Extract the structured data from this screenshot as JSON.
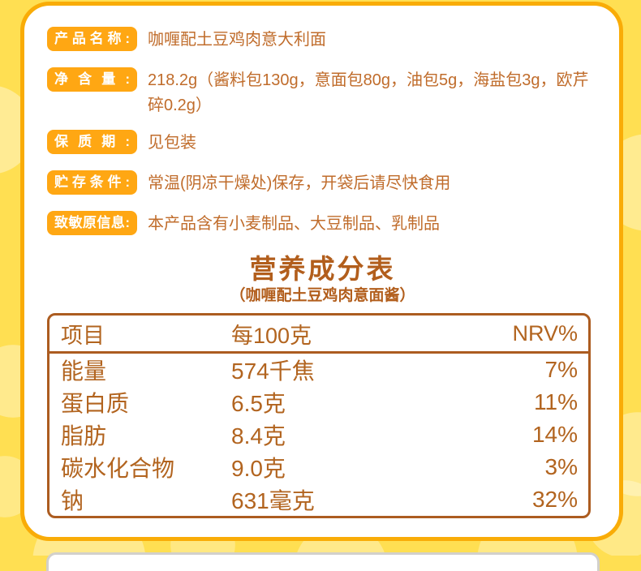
{
  "colors": {
    "page_background": "#FFDF52",
    "panel_border": "#F9AC07",
    "badge_background": "#FFA713",
    "badge_text": "#FFFFFF",
    "body_text": "#C06C2B",
    "nutrition_brown": "#B25E1C",
    "table_border": "#AC5C20"
  },
  "product_info": {
    "rows": [
      {
        "label": "产品名称:",
        "value": "咖喱配土豆鸡肉意大利面"
      },
      {
        "label": "净含量:",
        "value": "218.2g（酱料包130g，意面包80g，油包5g，海盐包3g，欧芹碎0.2g）"
      },
      {
        "label": "保质期:",
        "value": "见包装"
      },
      {
        "label": "贮存条件:",
        "value": "常温(阴凉干燥处)保存，开袋后请尽快食用"
      },
      {
        "label": "致敏原信息:",
        "value": "本产品含有小麦制品、大豆制品、乳制品"
      }
    ]
  },
  "nutrition": {
    "title": "营养成分表",
    "subtitle": "（咖喱配土豆鸡肉意面酱）",
    "table": {
      "headers": [
        "项目",
        "每100克",
        "NRV%"
      ],
      "rows": [
        [
          "能量",
          "574千焦",
          "7%"
        ],
        [
          "蛋白质",
          "6.5克",
          "11%"
        ],
        [
          "脂肪",
          "8.4克",
          "14%"
        ],
        [
          "碳水化合物",
          "9.0克",
          "3%"
        ],
        [
          "钠",
          "631毫克",
          "32%"
        ]
      ]
    }
  }
}
